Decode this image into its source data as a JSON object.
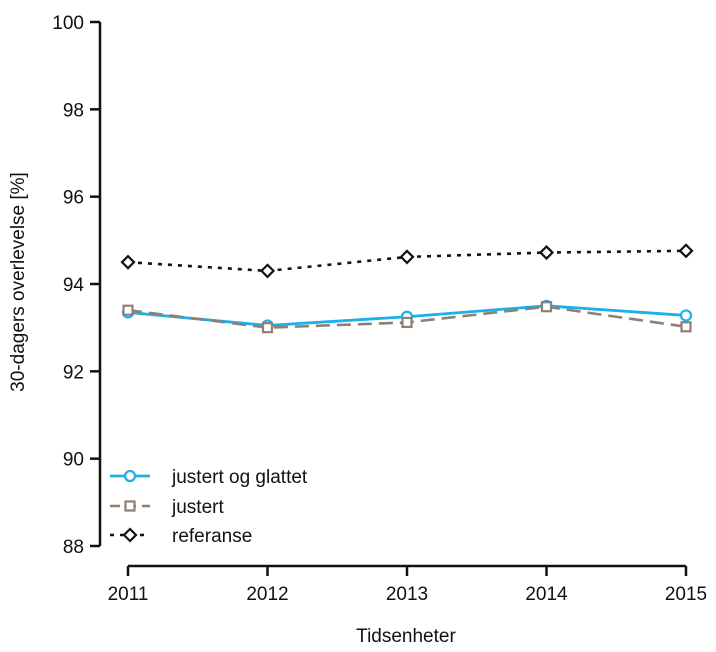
{
  "chart_data": {
    "type": "line",
    "title": "",
    "xlabel": "Tidsenheter",
    "ylabel": "30-dagers overlevelse [%]",
    "categories": [
      "2011",
      "2012",
      "2013",
      "2014",
      "2015"
    ],
    "ylim": [
      88,
      100
    ],
    "yticks": [
      "88",
      "90",
      "92",
      "94",
      "96",
      "98",
      "100"
    ],
    "grid": false,
    "legend_position": "bottom-left",
    "series": [
      {
        "name": "justert og glattet",
        "values": [
          93.35,
          93.05,
          93.25,
          93.5,
          93.28
        ],
        "color": "#1ab0e8",
        "marker": "circle",
        "dash": "solid"
      },
      {
        "name": "justert",
        "values": [
          93.4,
          93.0,
          93.12,
          93.48,
          93.02
        ],
        "color": "#8c8077",
        "marker": "square",
        "dash": "dashed"
      },
      {
        "name": "referanse",
        "values": [
          94.5,
          94.3,
          94.62,
          94.72,
          94.76
        ],
        "color": "#111111",
        "marker": "diamond",
        "dash": "dotted"
      }
    ]
  }
}
